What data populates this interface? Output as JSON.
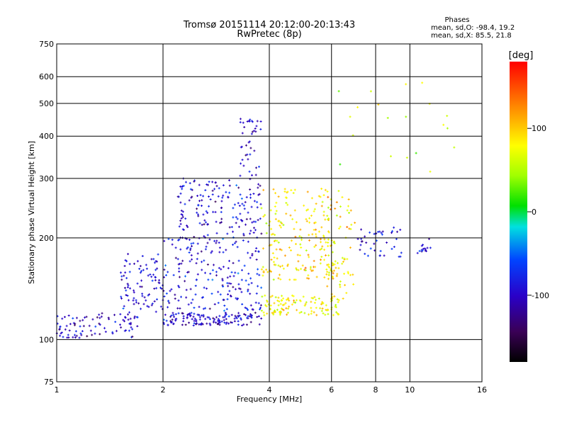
{
  "chart_data": {
    "type": "scatter",
    "title": "Tromsø 20151114 20:12:00-20:13:43",
    "subtitle": "RwPretec (8p)",
    "xlabel": "Frequency [MHz]",
    "ylabel": "Stationary phase Virtual Height [km]",
    "x_scale": "log",
    "y_scale": "log",
    "xlim": [
      1,
      16
    ],
    "ylim": [
      75,
      750
    ],
    "x_ticks": [
      1,
      2,
      4,
      6,
      8,
      10,
      16
    ],
    "y_ticks": [
      75,
      100,
      200,
      300,
      400,
      500,
      600,
      750
    ],
    "grid": true,
    "stats": {
      "heading": "Phases",
      "o_line": "mean, sd,O:  -98.4, 19.2",
      "x_line": "mean, sd,X:  85.5, 21.8"
    },
    "colorbar": {
      "label": "[deg]",
      "ticks": [
        100,
        0,
        -100
      ],
      "range": [
        -180,
        180
      ]
    },
    "point_groups": [
      {
        "x_range": [
          1.0,
          1.7
        ],
        "y_range": [
          101,
          120
        ],
        "phase_mean": -100,
        "count": 90
      },
      {
        "x_range": [
          1.5,
          2.0
        ],
        "y_range": [
          120,
          180
        ],
        "phase_mean": -95,
        "count": 90
      },
      {
        "x_range": [
          2.0,
          3.8
        ],
        "y_range": [
          110,
          120
        ],
        "phase_mean": -100,
        "count": 140
      },
      {
        "x_range": [
          2.0,
          3.8
        ],
        "y_range": [
          120,
          200
        ],
        "phase_mean": -90,
        "count": 200
      },
      {
        "x_range": [
          2.2,
          3.8
        ],
        "y_range": [
          200,
          300
        ],
        "phase_mean": -95,
        "count": 160
      },
      {
        "x_range": [
          3.3,
          3.8
        ],
        "y_range": [
          300,
          450
        ],
        "phase_mean": -100,
        "count": 40
      },
      {
        "x_range": [
          3.8,
          6.3
        ],
        "y_range": [
          118,
          135
        ],
        "phase_mean": 80,
        "count": 120
      },
      {
        "x_range": [
          3.8,
          6.3
        ],
        "y_range": [
          150,
          200
        ],
        "phase_mean": 90,
        "count": 110
      },
      {
        "x_range": [
          3.8,
          6.0
        ],
        "y_range": [
          200,
          280
        ],
        "phase_mean": 85,
        "count": 90
      },
      {
        "x_range": [
          5.8,
          7.0
        ],
        "y_range": [
          130,
          280
        ],
        "phase_mean": 90,
        "count": 70
      },
      {
        "x_range": [
          7.0,
          9.5
        ],
        "y_range": [
          175,
          215
        ],
        "phase_mean": -90,
        "count": 40
      },
      {
        "x_range": [
          10.5,
          11.5
        ],
        "y_range": [
          180,
          200
        ],
        "phase_mean": -95,
        "count": 15
      },
      {
        "x_range": [
          6.0,
          14.0
        ],
        "y_range": [
          300,
          620
        ],
        "phase_mean": 60,
        "count": 20
      }
    ]
  }
}
